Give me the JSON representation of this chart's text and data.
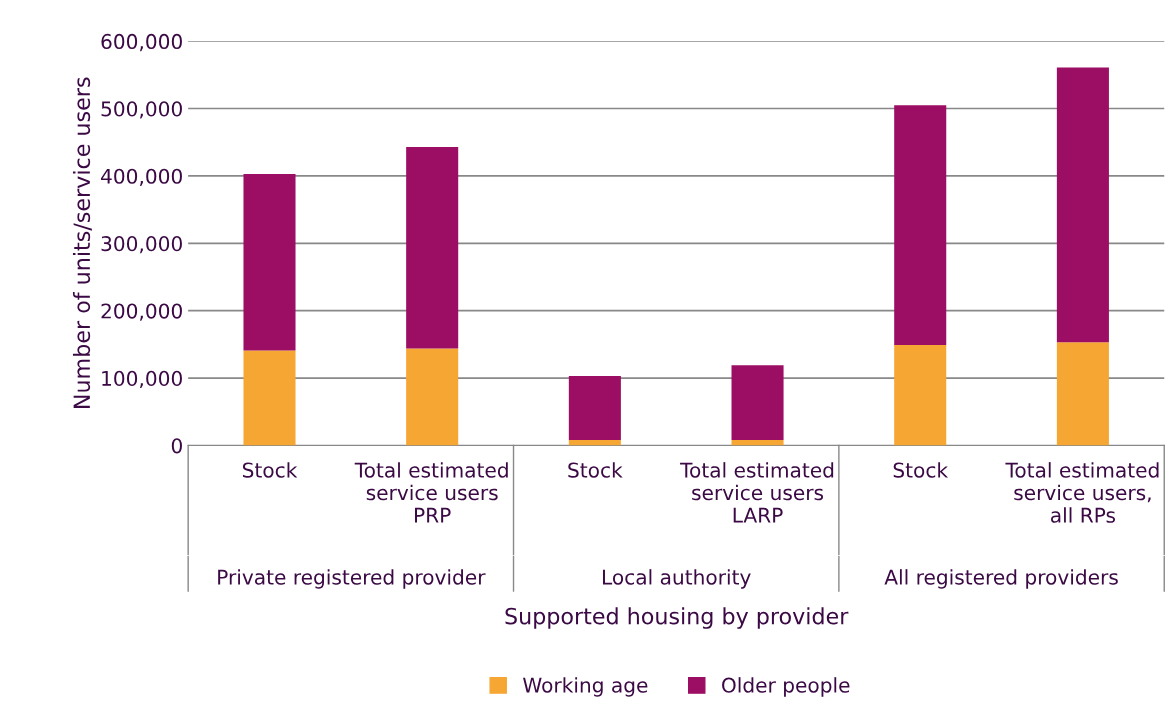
{
  "chart_data": {
    "type": "bar",
    "stacked": true,
    "xlabel": "Supported housing by provider",
    "ylabel": "Number of units/service users",
    "categories": [
      "Stock",
      "Total estimated\nservice users\nPRP",
      "Stock",
      "Total estimated\nservice users\nLARP",
      "Stock",
      "Total estimated\nservice users,\nall RPs"
    ],
    "series": [
      {
        "name": "Working age",
        "color": "#f6a633",
        "values": [
          141000,
          144000,
          8000,
          8000,
          149000,
          153000
        ]
      },
      {
        "name": "Older people",
        "color": "#9c0e63",
        "values": [
          262000,
          299000,
          95000,
          111000,
          356000,
          408000
        ]
      }
    ],
    "ylim": [
      0,
      600000
    ],
    "yticks": [
      0,
      {
        "value": 100000,
        "label": "100,000"
      },
      {
        "value": 200000,
        "label": "200,000"
      },
      {
        "value": 300000,
        "label": "300,000"
      },
      {
        "value": 400000,
        "label": "400,000"
      },
      {
        "value": 500000,
        "label": "500,000"
      },
      {
        "value": 600000,
        "label": "600,000"
      }
    ],
    "annotations": [
      "Private registered provider",
      "Local authority",
      "All registered providers"
    ],
    "grid": "y",
    "legend": "bottom"
  }
}
